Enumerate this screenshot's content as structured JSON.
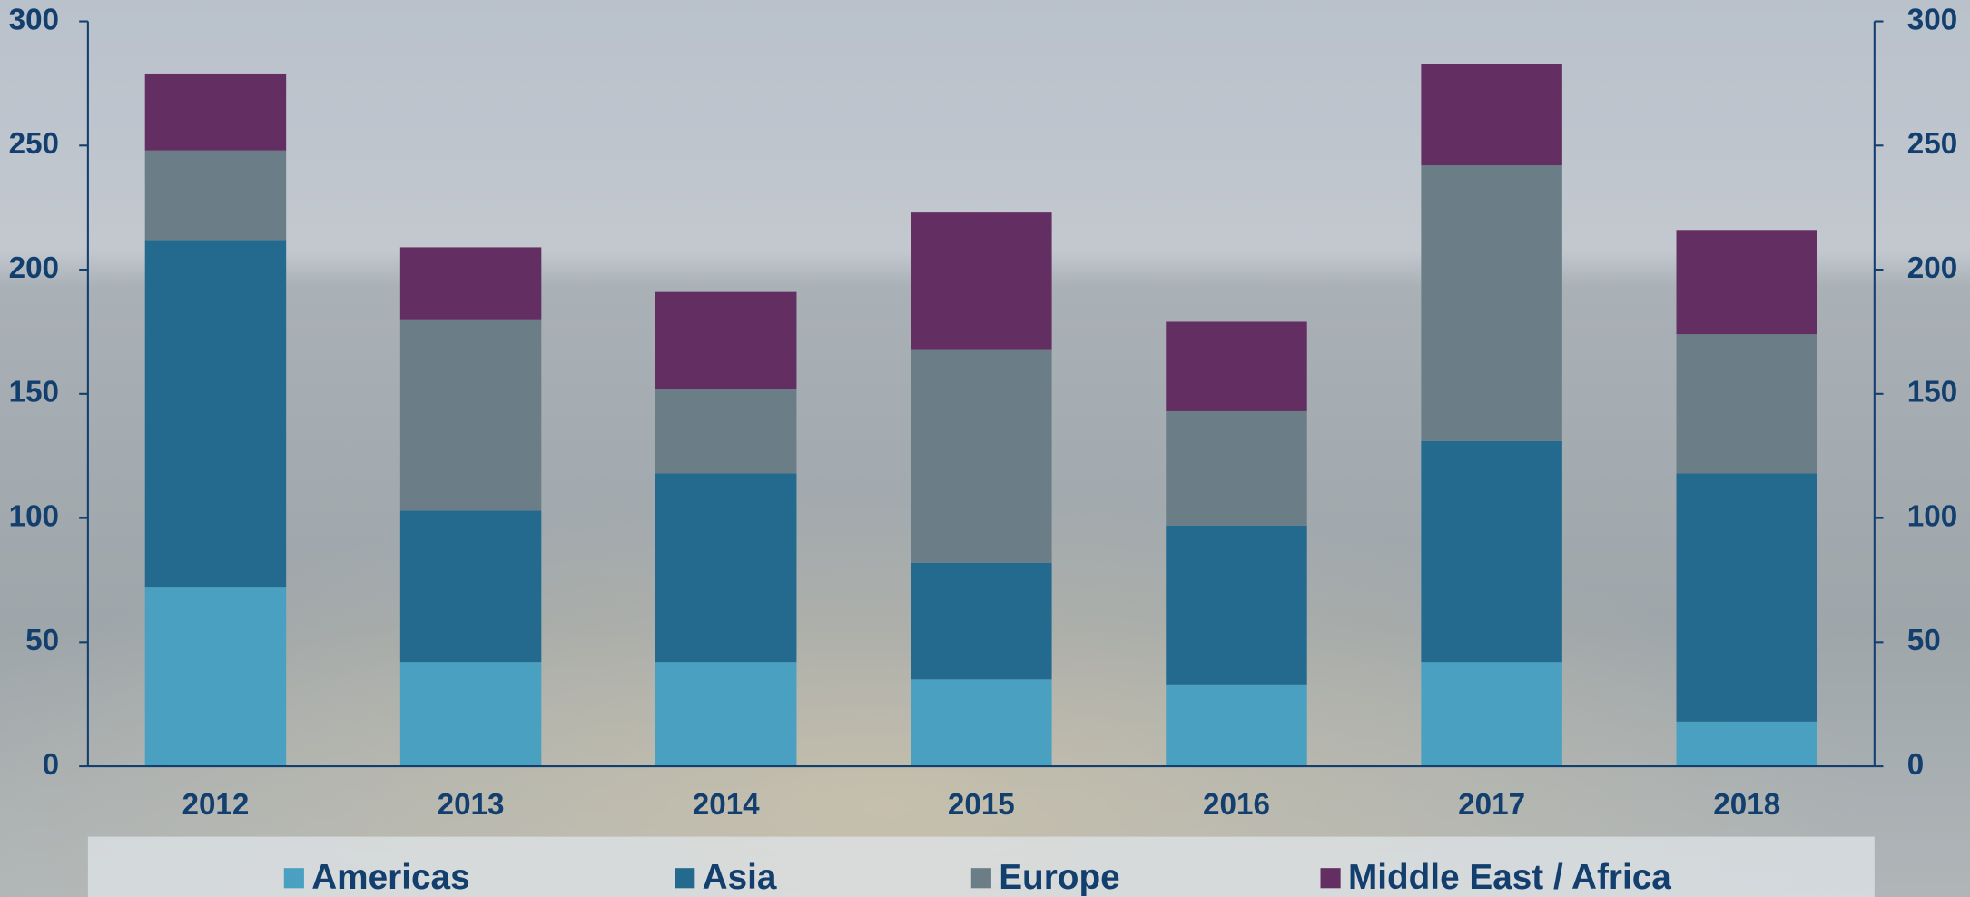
{
  "chart_data": {
    "type": "stacked_bar",
    "categories": [
      "2012",
      "2013",
      "2014",
      "2015",
      "2016",
      "2017",
      "2018"
    ],
    "series": [
      {
        "name": "Americas",
        "color": "#4aa0c0",
        "values": [
          72,
          42,
          42,
          35,
          33,
          42,
          18
        ]
      },
      {
        "name": "Asia",
        "color": "#246a8e",
        "values": [
          140,
          61,
          76,
          47,
          64,
          89,
          100
        ]
      },
      {
        "name": "Europe",
        "color": "#6b7d87",
        "values": [
          36,
          77,
          34,
          86,
          46,
          111,
          56
        ]
      },
      {
        "name": "Middle East / Africa",
        "color": "#632e62",
        "values": [
          31,
          29,
          39,
          55,
          36,
          41,
          42
        ]
      }
    ],
    "ylim": [
      0,
      300
    ],
    "yticks": [
      0,
      50,
      100,
      150,
      200,
      250,
      300
    ],
    "y2lim": [
      0,
      300
    ],
    "y2ticks": [
      0,
      50,
      100,
      150,
      200,
      250,
      300
    ],
    "legend": "bottom"
  }
}
